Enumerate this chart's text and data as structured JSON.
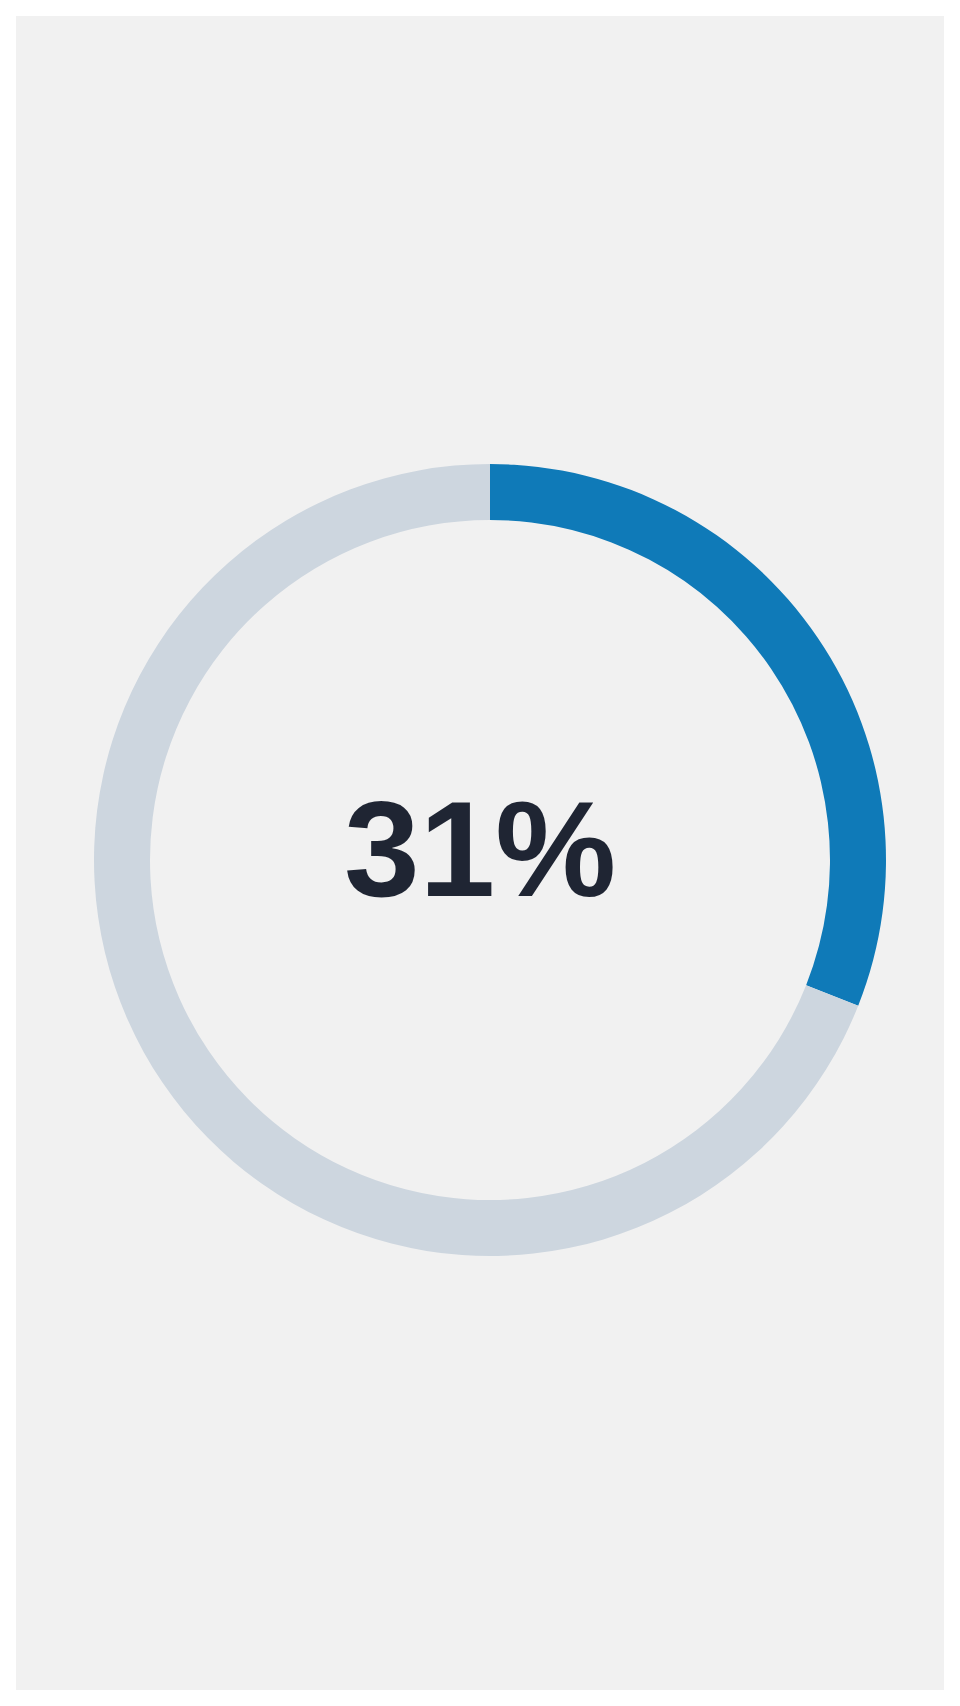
{
  "chart_data": {
    "type": "donut",
    "categories": [
      null,
      null
    ],
    "values": [
      31,
      69
    ],
    "colors": [
      "#0f7ab8",
      "#cdd6df"
    ],
    "annotations": [
      "31%"
    ]
  }
}
